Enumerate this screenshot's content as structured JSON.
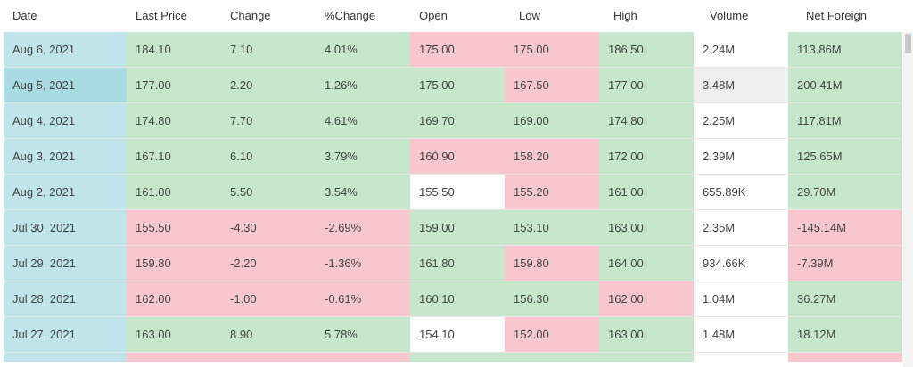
{
  "columns": {
    "date": "Date",
    "last_price": "Last Price",
    "change": "Change",
    "pct_change": "%Change",
    "open": "Open",
    "low": "Low",
    "high": "High",
    "volume": "Volume",
    "net_foreign": "Net Foreign"
  },
  "rows": [
    {
      "date": "Aug 6, 2021",
      "last_price": "184.10",
      "change": "7.10",
      "pct_change": "4.01%",
      "open": "175.00",
      "low": "175.00",
      "high": "186.50",
      "volume": "2.24M",
      "net_foreign": "113.86M"
    },
    {
      "date": "Aug 5, 2021",
      "last_price": "177.00",
      "change": "2.20",
      "pct_change": "1.26%",
      "open": "175.00",
      "low": "167.50",
      "high": "177.00",
      "volume": "3.48M",
      "net_foreign": "200.41M"
    },
    {
      "date": "Aug 4, 2021",
      "last_price": "174.80",
      "change": "7.70",
      "pct_change": "4.61%",
      "open": "169.70",
      "low": "169.00",
      "high": "174.80",
      "volume": "2.25M",
      "net_foreign": "117.81M"
    },
    {
      "date": "Aug 3, 2021",
      "last_price": "167.10",
      "change": "6.10",
      "pct_change": "3.79%",
      "open": "160.90",
      "low": "158.20",
      "high": "172.00",
      "volume": "2.39M",
      "net_foreign": "125.65M"
    },
    {
      "date": "Aug 2, 2021",
      "last_price": "161.00",
      "change": "5.50",
      "pct_change": "3.54%",
      "open": "155.50",
      "low": "155.20",
      "high": "161.00",
      "volume": "655.89K",
      "net_foreign": "29.70M"
    },
    {
      "date": "Jul 30, 2021",
      "last_price": "155.50",
      "change": "-4.30",
      "pct_change": "-2.69%",
      "open": "159.00",
      "low": "153.10",
      "high": "163.00",
      "volume": "2.35M",
      "net_foreign": "-145.14M"
    },
    {
      "date": "Jul 29, 2021",
      "last_price": "159.80",
      "change": "-2.20",
      "pct_change": "-1.36%",
      "open": "161.80",
      "low": "159.80",
      "high": "164.00",
      "volume": "934.66K",
      "net_foreign": "-7.39M"
    },
    {
      "date": "Jul 28, 2021",
      "last_price": "162.00",
      "change": "-1.00",
      "pct_change": "-0.61%",
      "open": "160.10",
      "low": "156.30",
      "high": "162.00",
      "volume": "1.04M",
      "net_foreign": "36.27M"
    },
    {
      "date": "Jul 27, 2021",
      "last_price": "163.00",
      "change": "8.90",
      "pct_change": "5.78%",
      "open": "154.10",
      "low": "152.00",
      "high": "163.00",
      "volume": "1.48M",
      "net_foreign": "18.12M"
    }
  ],
  "colors": {
    "up": "#c6e7cb",
    "down": "#f7c7cd",
    "neutral": "#ffffff",
    "date": "#bfe4ea",
    "date_selected": "#a9dbe3",
    "hover": "#eeeeee"
  }
}
